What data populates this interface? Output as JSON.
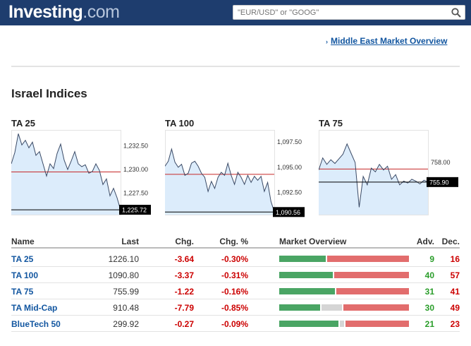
{
  "header": {
    "logo_main": "Investing",
    "logo_suffix": ".com",
    "search_placeholder": "\"EUR/USD\" or \"GOOG\"",
    "icons": {
      "search": "search-icon"
    }
  },
  "link": {
    "label": "Middle East Market Overview",
    "icon": "chevron-right-icon"
  },
  "page_title": "Israel Indices",
  "colors": {
    "up": "#4aa564",
    "down": "#e26d6d",
    "neutral": "#d5d5d5",
    "fill": "#dcecfb",
    "line": "#3a4a66",
    "ref": "#c62828"
  },
  "chart_data": [
    {
      "type": "area",
      "title": "TA 25",
      "ylim": [
        1225.2,
        1234.2
      ],
      "yticks": [
        1232.5,
        1230.0,
        1227.5
      ],
      "ytick_labels": [
        "1,232.50",
        "1,230.00",
        "1,227.50"
      ],
      "ref_value": 1229.74,
      "last_value": 1225.72,
      "last_label": "1,225.72",
      "values": [
        1230.6,
        1231.8,
        1233.8,
        1232.6,
        1233.1,
        1232.3,
        1232.9,
        1231.5,
        1231.9,
        1230.6,
        1229.3,
        1230.6,
        1230.1,
        1231.7,
        1232.7,
        1231.0,
        1230.0,
        1230.9,
        1231.9,
        1230.6,
        1230.3,
        1230.5,
        1229.6,
        1229.8,
        1230.6,
        1229.9,
        1228.4,
        1229.0,
        1227.2,
        1228.0,
        1227.0,
        1225.7
      ]
    },
    {
      "type": "area",
      "title": "TA 100",
      "ylim": [
        1090.3,
        1098.7
      ],
      "yticks": [
        1097.5,
        1095.0,
        1092.5
      ],
      "ytick_labels": [
        "1,097.50",
        "1,095.00",
        "1,092.50"
      ],
      "ref_value": 1094.3,
      "last_value": 1090.56,
      "last_label": "1,090.56",
      "values": [
        1095.1,
        1095.6,
        1096.8,
        1095.5,
        1095.0,
        1095.3,
        1094.2,
        1094.4,
        1095.4,
        1095.6,
        1095.1,
        1094.4,
        1094.0,
        1092.6,
        1093.6,
        1092.9,
        1094.0,
        1094.5,
        1094.2,
        1095.4,
        1094.2,
        1093.3,
        1094.5,
        1094.0,
        1093.3,
        1094.2,
        1093.5,
        1094.1,
        1093.7,
        1094.1,
        1092.6,
        1093.5,
        1091.6,
        1090.6
      ]
    },
    {
      "type": "area",
      "title": "TA 75",
      "ylim": [
        752.4,
        761.5
      ],
      "yticks": [
        758.0
      ],
      "ytick_labels": [
        "758.00"
      ],
      "ref_value": 757.3,
      "last_value": 755.9,
      "last_label": "755.90",
      "values": [
        757.2,
        758.5,
        757.8,
        758.3,
        757.9,
        758.4,
        758.9,
        760.0,
        759.0,
        758.0,
        753.2,
        756.5,
        755.6,
        757.4,
        757.0,
        757.8,
        757.2,
        757.6,
        756.2,
        756.7,
        755.6,
        756.0,
        755.8,
        756.2,
        756.0,
        755.7,
        756.1,
        755.9
      ]
    }
  ],
  "table": {
    "headers": [
      "Name",
      "Last",
      "Chg.",
      "Chg. %",
      "Market Overview",
      "Adv.",
      "Dec."
    ],
    "rows": [
      {
        "name": "TA 25",
        "last": "1226.10",
        "chg": "-3.64",
        "pct": "-0.30%",
        "adv": "9",
        "dec": "16",
        "unch": 0
      },
      {
        "name": "TA 100",
        "last": "1090.80",
        "chg": "-3.37",
        "pct": "-0.31%",
        "adv": "40",
        "dec": "57",
        "unch": 0
      },
      {
        "name": "TA 75",
        "last": "755.99",
        "chg": "-1.22",
        "pct": "-0.16%",
        "adv": "31",
        "dec": "41",
        "unch": 0
      },
      {
        "name": "TA Mid-Cap",
        "last": "910.48",
        "chg": "-7.79",
        "pct": "-0.85%",
        "adv": "30",
        "dec": "49",
        "unch": 16
      },
      {
        "name": "BlueTech 50",
        "last": "299.92",
        "chg": "-0.27",
        "pct": "-0.09%",
        "adv": "21",
        "dec": "23",
        "unch": 2
      }
    ]
  }
}
